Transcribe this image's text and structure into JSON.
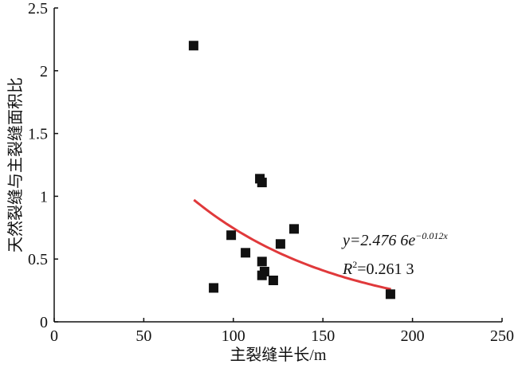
{
  "chart_data": {
    "type": "scatter",
    "x_label": "主裂缝半长/m",
    "y_label": "天然裂缝与主裂缝面积比",
    "x": [
      77.8,
      89,
      98.8,
      106.8,
      114.8,
      116,
      116,
      117.4,
      116,
      122.3,
      126.3,
      133.9,
      187.7
    ],
    "values": [
      2.2,
      0.27,
      0.69,
      0.55,
      1.14,
      1.11,
      0.48,
      0.4,
      0.37,
      0.33,
      0.62,
      0.74,
      0.22
    ],
    "color": "#111111",
    "xlim": [
      0,
      250
    ],
    "xticks": [
      0,
      50,
      100,
      150,
      200,
      250
    ],
    "ylim": [
      0,
      2.5
    ],
    "yticks": [
      0,
      0.5,
      1,
      1.5,
      2,
      2.5
    ],
    "trendline": {
      "a": 2.4766,
      "b": -0.012,
      "x_range": [
        78,
        188
      ],
      "color": "#e0393b"
    },
    "equation": {
      "base": "y=2.476 6e",
      "exponent": "−0.012x"
    },
    "r_squared": {
      "base": "R",
      "exponent": "2",
      "rest": "=0.261 3"
    }
  }
}
